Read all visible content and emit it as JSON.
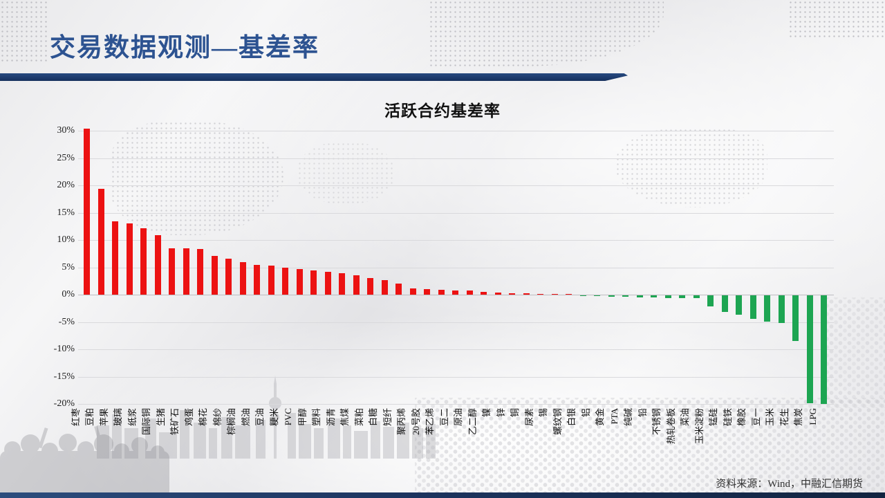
{
  "slide": {
    "title": "交易数据观测—基差率",
    "source_note": "资料来源：Wind，中融汇信期货"
  },
  "colors": {
    "title_blue": "#2d5391",
    "divider_navy": "#1c3a6c",
    "positive_bar_red": "#ec1212",
    "negative_bar_green": "#1da552",
    "gridline_gray": "#d9d9dc"
  },
  "chart_data": {
    "type": "bar",
    "title": "活跃合约基差率",
    "xlabel": "",
    "ylabel": "",
    "ylim": [
      -20,
      30
    ],
    "ytick_step": 5,
    "yticks": [
      "30%",
      "25%",
      "20%",
      "15%",
      "10%",
      "5%",
      "0%",
      "-5%",
      "-10%",
      "-15%",
      "-20%"
    ],
    "grid": true,
    "legend": "none",
    "bar_color_rule": "red if value >= 0, green if value < 0",
    "categories": [
      "红枣",
      "豆粕",
      "苹果",
      "玻璃",
      "纸浆",
      "国际铜",
      "生猪",
      "铁矿石",
      "鸡蛋",
      "棉花",
      "棉纱",
      "棕榈油",
      "燃油",
      "豆油",
      "粳米",
      "PVC",
      "甲醇",
      "塑料",
      "沥青",
      "焦煤",
      "菜粕",
      "白糖",
      "短纤",
      "聚丙烯",
      "20号胶",
      "苯乙烯",
      "豆二",
      "原油",
      "乙二醇",
      "镍",
      "锌",
      "铜",
      "尿素",
      "锡",
      "螺纹钢",
      "白银",
      "铝",
      "黄金",
      "PTA",
      "纯碱",
      "铅",
      "不锈钢",
      "热轧卷板",
      "菜油",
      "玉米淀粉",
      "锰硅",
      "硅铁",
      "橡胶",
      "豆一",
      "玉米",
      "花生",
      "焦炭",
      "LPG"
    ],
    "values": [
      30.4,
      19.4,
      13.4,
      13.0,
      12.1,
      10.9,
      8.5,
      8.5,
      8.4,
      7.1,
      6.6,
      6.0,
      5.5,
      5.3,
      4.9,
      4.7,
      4.4,
      4.2,
      3.9,
      3.6,
      3.1,
      2.6,
      2.0,
      1.2,
      1.0,
      0.9,
      0.8,
      0.7,
      0.5,
      0.4,
      0.3,
      0.2,
      0.15,
      0.1,
      0.05,
      -0.05,
      -0.15,
      -0.2,
      -0.3,
      -0.35,
      -0.4,
      -0.45,
      -0.5,
      -0.55,
      -2.0,
      -3.0,
      -3.6,
      -4.3,
      -4.8,
      -5.1,
      -8.3,
      -19.8,
      -19.9
    ]
  }
}
